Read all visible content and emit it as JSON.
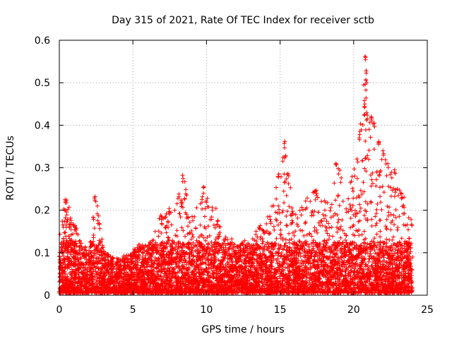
{
  "chart_data": {
    "type": "scatter",
    "title": "Day 315 of 2021, Rate Of TEC Index for receiver sctb",
    "xlabel": "GPS time / hours",
    "ylabel": "ROTI / TECUs",
    "xlim": [
      0,
      25
    ],
    "ylim": [
      0,
      0.6
    ],
    "x_ticks": [
      0,
      5,
      10,
      15,
      20,
      25
    ],
    "y_ticks": [
      0,
      0.1,
      0.2,
      0.3,
      0.4,
      0.5,
      0.6
    ],
    "x_tick_labels": [
      "0",
      "5",
      "10",
      "15",
      "20",
      "25"
    ],
    "y_tick_labels": [
      "0",
      "0.1",
      "0.2",
      "0.3",
      "0.4",
      "0.5",
      "0.6"
    ],
    "grid": true,
    "marker": "+",
    "marker_color": "#ff0000",
    "series": [
      {
        "x_range": [
          0,
          24
        ],
        "envelope": [
          [
            0.0,
            0.17
          ],
          [
            0.5,
            0.22
          ],
          [
            1.0,
            0.17
          ],
          [
            1.5,
            0.12
          ],
          [
            2.0,
            0.1
          ],
          [
            2.5,
            0.23
          ],
          [
            3.0,
            0.1
          ],
          [
            3.5,
            0.09
          ],
          [
            4.0,
            0.08
          ],
          [
            4.5,
            0.09
          ],
          [
            5.0,
            0.1
          ],
          [
            5.5,
            0.12
          ],
          [
            6.0,
            0.11
          ],
          [
            6.5,
            0.15
          ],
          [
            7.0,
            0.21
          ],
          [
            7.5,
            0.2
          ],
          [
            8.0,
            0.22
          ],
          [
            8.5,
            0.28
          ],
          [
            9.0,
            0.19
          ],
          [
            9.5,
            0.21
          ],
          [
            10.0,
            0.25
          ],
          [
            10.5,
            0.22
          ],
          [
            11.0,
            0.15
          ],
          [
            11.5,
            0.14
          ],
          [
            12.0,
            0.12
          ],
          [
            12.5,
            0.13
          ],
          [
            13.0,
            0.12
          ],
          [
            13.5,
            0.16
          ],
          [
            14.0,
            0.19
          ],
          [
            14.5,
            0.22
          ],
          [
            15.0,
            0.3
          ],
          [
            15.3,
            0.36
          ],
          [
            15.7,
            0.26
          ],
          [
            16.0,
            0.19
          ],
          [
            16.5,
            0.21
          ],
          [
            17.0,
            0.23
          ],
          [
            17.5,
            0.25
          ],
          [
            18.0,
            0.22
          ],
          [
            18.5,
            0.26
          ],
          [
            19.0,
            0.3
          ],
          [
            19.5,
            0.24
          ],
          [
            20.0,
            0.3
          ],
          [
            20.4,
            0.38
          ],
          [
            20.8,
            0.56
          ],
          [
            21.2,
            0.42
          ],
          [
            21.6,
            0.38
          ],
          [
            22.0,
            0.34
          ],
          [
            22.5,
            0.3
          ],
          [
            23.0,
            0.26
          ],
          [
            23.5,
            0.22
          ],
          [
            24.0,
            0.17
          ]
        ],
        "peaks": [
          [
            0.4,
            0.225
          ],
          [
            2.4,
            0.232
          ],
          [
            8.4,
            0.282
          ],
          [
            9.8,
            0.255
          ],
          [
            15.3,
            0.362
          ],
          [
            14.9,
            0.285
          ],
          [
            18.8,
            0.31
          ],
          [
            20.4,
            0.378
          ],
          [
            20.8,
            0.562
          ],
          [
            20.85,
            0.528
          ],
          [
            20.8,
            0.507
          ],
          [
            20.75,
            0.45
          ],
          [
            20.9,
            0.43
          ],
          [
            21.2,
            0.42
          ],
          [
            21.4,
            0.405
          ],
          [
            21.7,
            0.36
          ],
          [
            22.0,
            0.34
          ],
          [
            22.8,
            0.295
          ],
          [
            23.2,
            0.24
          ]
        ]
      }
    ]
  }
}
